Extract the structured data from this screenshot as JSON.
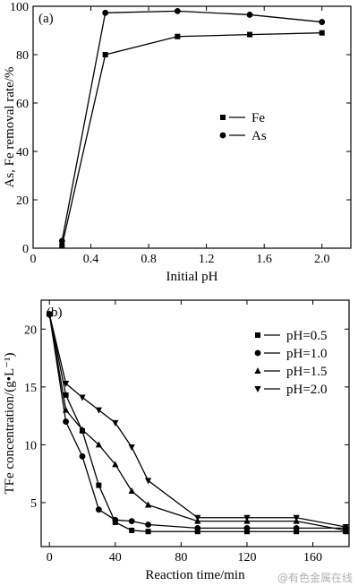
{
  "chart_data": [
    {
      "type": "line",
      "panel_label": "(a)",
      "xlabel": "Initial pH",
      "ylabel": "As, Fe removal rate/%",
      "xlim": [
        0,
        2.2
      ],
      "ylim": [
        0,
        100
      ],
      "xticks": [
        "0",
        "0.4",
        "0.8",
        "1.2",
        "1.6",
        "2.0"
      ],
      "yticks": [
        "0",
        "20",
        "40",
        "60",
        "80",
        "100"
      ],
      "legend_position": "right-middle",
      "series": [
        {
          "name": "Fe",
          "marker": "square",
          "x": [
            0.2,
            0.5,
            1.0,
            1.5,
            2.0
          ],
          "y": [
            1,
            80,
            87.5,
            88.3,
            89
          ]
        },
        {
          "name": "As",
          "marker": "circle",
          "x": [
            0.2,
            0.5,
            1.0,
            1.5,
            2.0
          ],
          "y": [
            3,
            97.3,
            98,
            96.5,
            93.5
          ]
        }
      ]
    },
    {
      "type": "line",
      "panel_label": "(b)",
      "xlabel": "Reaction time/min",
      "ylabel": "TFe concentration/(g•L⁻¹)",
      "xlim": [
        -5,
        182
      ],
      "ylim": [
        1.2,
        22.5
      ],
      "xticks": [
        "0",
        "40",
        "80",
        "120",
        "160"
      ],
      "yticks": [
        "5",
        "10",
        "15",
        "20"
      ],
      "legend_position": "top-right",
      "series": [
        {
          "name": "pH=0.5",
          "marker": "square",
          "x": [
            0,
            10,
            20,
            30,
            40,
            50,
            60,
            90,
            120,
            150,
            180
          ],
          "y": [
            21.3,
            14.3,
            11.2,
            6.5,
            3.3,
            2.6,
            2.5,
            2.5,
            2.5,
            2.5,
            2.5
          ]
        },
        {
          "name": "pH=1.0",
          "marker": "circle",
          "x": [
            0,
            10,
            20,
            30,
            40,
            50,
            60,
            90,
            120,
            150,
            180
          ],
          "y": [
            21.3,
            12.0,
            9.0,
            4.4,
            3.5,
            3.4,
            3.1,
            2.8,
            2.8,
            2.8,
            2.8
          ]
        },
        {
          "name": "pH=1.5",
          "marker": "triangle-up",
          "x": [
            0,
            10,
            20,
            30,
            40,
            50,
            60,
            90,
            120,
            150,
            180
          ],
          "y": [
            21.3,
            13.0,
            11.3,
            10.0,
            8.3,
            6.0,
            4.8,
            3.4,
            3.4,
            3.4,
            2.6
          ]
        },
        {
          "name": "pH=2.0",
          "marker": "triangle-down",
          "x": [
            0,
            10,
            20,
            30,
            40,
            50,
            60,
            90,
            120,
            150,
            180
          ],
          "y": [
            21.3,
            15.3,
            14.1,
            13.0,
            11.9,
            9.8,
            6.9,
            3.7,
            3.7,
            3.7,
            2.9
          ]
        }
      ]
    }
  ],
  "watermark": "@有色金属在线"
}
